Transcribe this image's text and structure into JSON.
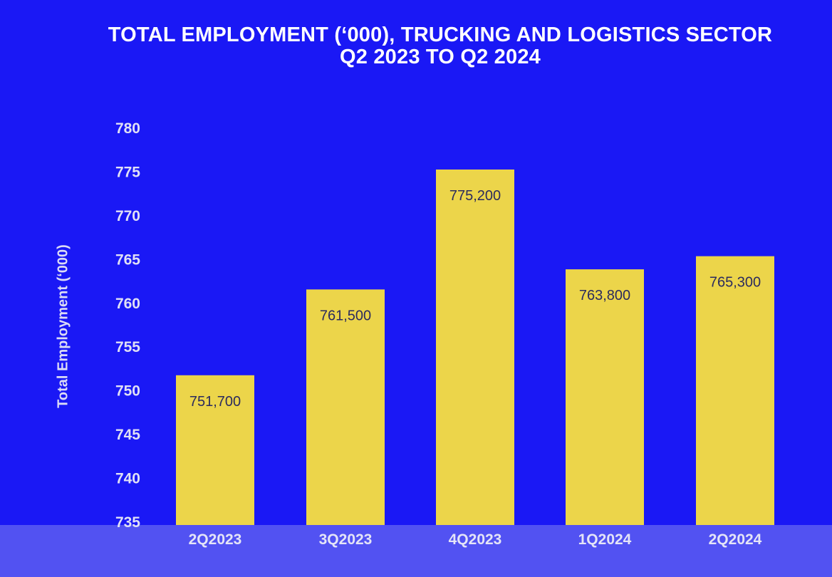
{
  "chart_data": {
    "type": "bar",
    "title_line1": "TOTAL EMPLOYMENT (‘000), TRUCKING AND LOGISTICS SECTOR",
    "title_line2": "Q2 2023 TO Q2 2024",
    "xlabel": "",
    "ylabel": "Total Employment (‘000)",
    "categories": [
      "2Q2023",
      "3Q2023",
      "4Q2023",
      "1Q2024",
      "2Q2024"
    ],
    "values": [
      751.7,
      761.5,
      775.2,
      763.8,
      765.3
    ],
    "data_labels": [
      "751,700",
      "761,500",
      "775,200",
      "763,800",
      "765,300"
    ],
    "ylim": [
      735,
      780
    ],
    "yticks": [
      735,
      740,
      745,
      750,
      755,
      760,
      765,
      770,
      775,
      780
    ],
    "grid": false,
    "legend": "none",
    "colors": {
      "background": "#1a18f5",
      "bar": "#ecd54a",
      "axis_band": "#5252f2",
      "text": "#ffffff"
    }
  }
}
